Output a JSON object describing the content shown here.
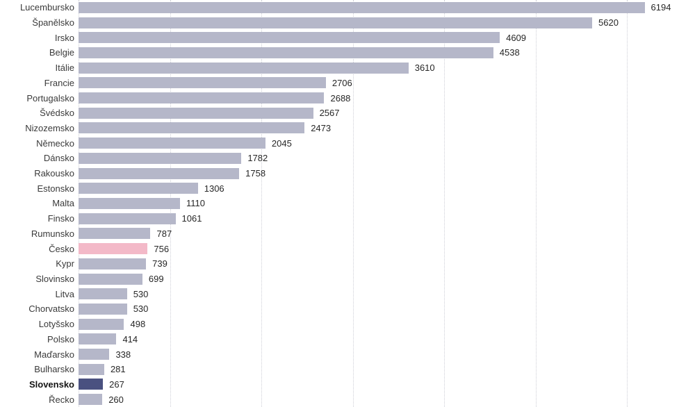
{
  "chart_data": {
    "type": "bar",
    "orientation": "horizontal",
    "xlim": [
      0,
      6745
    ],
    "gridline_values": [
      0,
      1000,
      2000,
      3000,
      4000,
      5000,
      6000
    ],
    "grid": "dotted-vertical",
    "legend": "none",
    "colors": {
      "default_bar": "#b5b7c9",
      "czech_highlight_bar": "#f3b9c8",
      "slovak_highlight_bar": "#4a5180",
      "gridline": "#cdced6",
      "label_text": "#3a3a3a",
      "value_text": "#262626"
    },
    "bars": [
      {
        "label": "Lucembursko",
        "value": 6194,
        "highlight": "default_bar",
        "bold": false
      },
      {
        "label": "Španělsko",
        "value": 5620,
        "highlight": "default_bar",
        "bold": false
      },
      {
        "label": "Irsko",
        "value": 4609,
        "highlight": "default_bar",
        "bold": false
      },
      {
        "label": "Belgie",
        "value": 4538,
        "highlight": "default_bar",
        "bold": false
      },
      {
        "label": "Itálie",
        "value": 3610,
        "highlight": "default_bar",
        "bold": false
      },
      {
        "label": "Francie",
        "value": 2706,
        "highlight": "default_bar",
        "bold": false
      },
      {
        "label": "Portugalsko",
        "value": 2688,
        "highlight": "default_bar",
        "bold": false
      },
      {
        "label": "Švédsko",
        "value": 2567,
        "highlight": "default_bar",
        "bold": false
      },
      {
        "label": "Nizozemsko",
        "value": 2473,
        "highlight": "default_bar",
        "bold": false
      },
      {
        "label": "Německo",
        "value": 2045,
        "highlight": "default_bar",
        "bold": false
      },
      {
        "label": "Dánsko",
        "value": 1782,
        "highlight": "default_bar",
        "bold": false
      },
      {
        "label": "Rakousko",
        "value": 1758,
        "highlight": "default_bar",
        "bold": false
      },
      {
        "label": "Estonsko",
        "value": 1306,
        "highlight": "default_bar",
        "bold": false
      },
      {
        "label": "Malta",
        "value": 1110,
        "highlight": "default_bar",
        "bold": false
      },
      {
        "label": "Finsko",
        "value": 1061,
        "highlight": "default_bar",
        "bold": false
      },
      {
        "label": "Rumunsko",
        "value": 787,
        "highlight": "default_bar",
        "bold": false
      },
      {
        "label": "Česko",
        "value": 756,
        "highlight": "czech_highlight_bar",
        "bold": false
      },
      {
        "label": "Kypr",
        "value": 739,
        "highlight": "default_bar",
        "bold": false
      },
      {
        "label": "Slovinsko",
        "value": 699,
        "highlight": "default_bar",
        "bold": false
      },
      {
        "label": "Litva",
        "value": 530,
        "highlight": "default_bar",
        "bold": false
      },
      {
        "label": "Chorvatsko",
        "value": 530,
        "highlight": "default_bar",
        "bold": false
      },
      {
        "label": "Lotyšsko",
        "value": 498,
        "highlight": "default_bar",
        "bold": false
      },
      {
        "label": "Polsko",
        "value": 414,
        "highlight": "default_bar",
        "bold": false
      },
      {
        "label": "Maďarsko",
        "value": 338,
        "highlight": "default_bar",
        "bold": false
      },
      {
        "label": "Bulharsko",
        "value": 281,
        "highlight": "default_bar",
        "bold": false
      },
      {
        "label": "Slovensko",
        "value": 267,
        "highlight": "slovak_highlight_bar",
        "bold": true
      },
      {
        "label": "Řecko",
        "value": 260,
        "highlight": "default_bar",
        "bold": false
      }
    ]
  }
}
